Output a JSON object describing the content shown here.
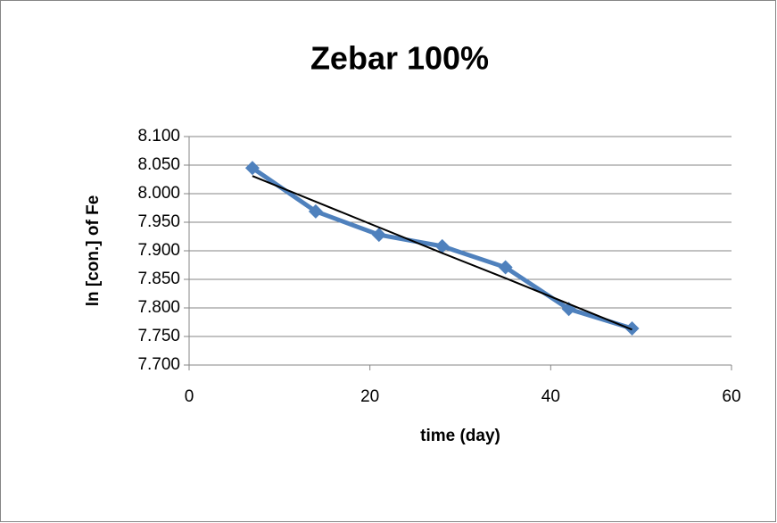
{
  "chart_data": {
    "type": "scatter",
    "title": "Zebar 100%",
    "xlabel": "time (day)",
    "ylabel": "ln [con.] of Fe",
    "x": [
      7,
      14,
      21,
      28,
      35,
      42,
      49
    ],
    "series": [
      {
        "color": "#4f81bd",
        "markers": true,
        "values": [
          8.045,
          7.969,
          7.928,
          7.908,
          7.871,
          7.798,
          7.764
        ]
      },
      {
        "color": "#000000",
        "markers": false,
        "values": [
          8.031,
          7.986,
          7.941,
          7.896,
          7.852,
          7.807,
          7.762
        ]
      }
    ],
    "xlim": [
      0,
      60
    ],
    "xticks": [
      0,
      20,
      40,
      60
    ],
    "ylim": [
      7.7,
      8.1
    ],
    "yticks": [
      {
        "value": 7.7,
        "label": "7.700"
      },
      {
        "value": 7.75,
        "label": "7.750"
      },
      {
        "value": 7.8,
        "label": "7.800"
      },
      {
        "value": 7.85,
        "label": "7.850"
      },
      {
        "value": 7.9,
        "label": "7.900"
      },
      {
        "value": 7.95,
        "label": "7.950"
      },
      {
        "value": 8.0,
        "label": "8.000"
      },
      {
        "value": 8.05,
        "label": "8.050"
      },
      {
        "value": 8.1,
        "label": "8.100"
      }
    ],
    "grid": true
  }
}
